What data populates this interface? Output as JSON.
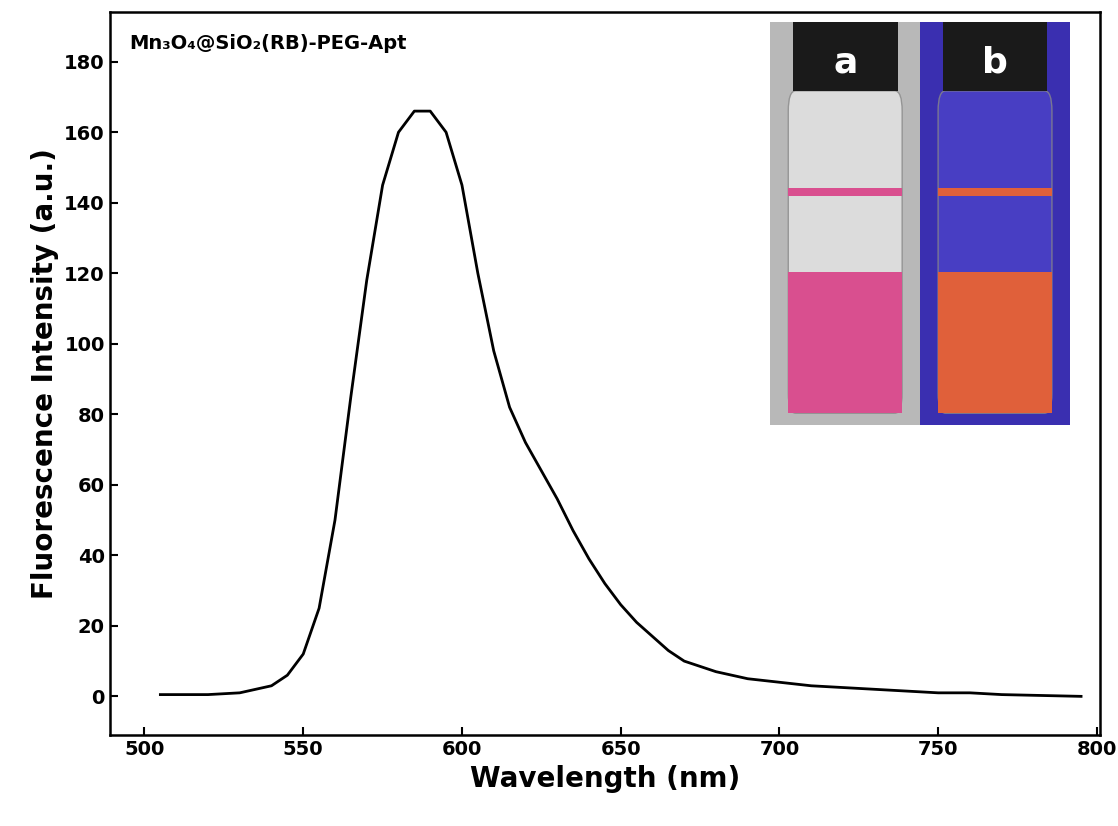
{
  "chart_data": {
    "type": "line",
    "title": "Mn₃O₄@SiO₂(RB)-PEG-Apt",
    "x_label": "Wavelength (nm)",
    "y_label": "Fluorescence Intensity (a.u.)",
    "x": [
      505,
      520,
      530,
      540,
      545,
      550,
      555,
      560,
      565,
      570,
      575,
      580,
      585,
      590,
      595,
      600,
      605,
      610,
      615,
      620,
      625,
      630,
      635,
      640,
      645,
      650,
      655,
      660,
      665,
      670,
      680,
      690,
      700,
      710,
      720,
      730,
      740,
      750,
      760,
      770,
      780,
      795
    ],
    "values": [
      0.5,
      0.5,
      1,
      3,
      6,
      12,
      25,
      50,
      85,
      118,
      145,
      160,
      166,
      166,
      160,
      145,
      120,
      98,
      82,
      72,
      64,
      56,
      47,
      39,
      32,
      26,
      21,
      17,
      13,
      10,
      7,
      5,
      4,
      3,
      2.5,
      2,
      1.5,
      1,
      1,
      0.5,
      0.3,
      0
    ],
    "color": "#000000",
    "xlim": [
      489,
      801
    ],
    "ylim": [
      -11,
      194
    ],
    "xticks": [
      500,
      550,
      600,
      650,
      700,
      750,
      800
    ],
    "yticks": [
      0,
      20,
      40,
      60,
      80,
      100,
      120,
      140,
      160,
      180
    ],
    "annotations": [
      "a",
      "b"
    ]
  }
}
